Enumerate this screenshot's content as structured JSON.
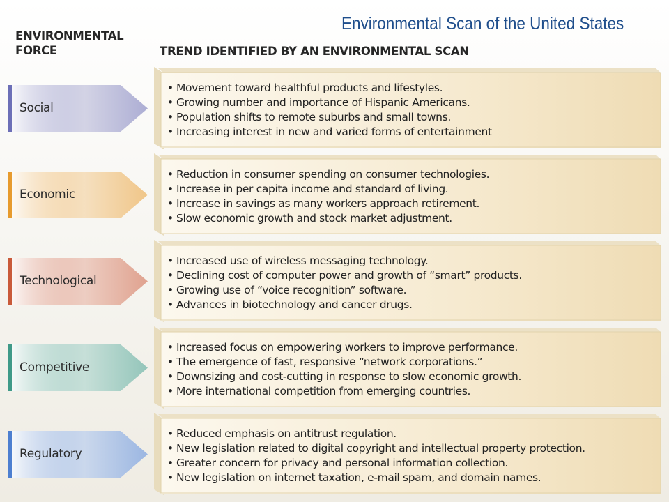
{
  "title": "Environmental Scan of the United States",
  "headers": {
    "force_line1": "ENVIRONMENTAL",
    "force_line2": "FORCE",
    "trend": "TREND IDENTIFIED BY AN ENVIRONMENTAL SCAN"
  },
  "rows": [
    {
      "label": "Social",
      "color": "#6c6fb7",
      "trends": [
        "Movement toward healthful products and lifestyles.",
        "Growing number and importance of Hispanic Americans.",
        "Population shifts to remote suburbs and small towns.",
        "Increasing interest in new and varied forms of entertainment"
      ]
    },
    {
      "label": "Economic",
      "color": "#e79b2e",
      "trends": [
        "Reduction in consumer spending on consumer technologies.",
        "Increase in per capita income and standard of living.",
        "Increase in savings as many workers approach retirement.",
        "Slow economic growth and stock market adjustment."
      ]
    },
    {
      "label": "Technological",
      "color": "#c95a3a",
      "trends": [
        "Increased use of wireless messaging technology.",
        "Declining cost of computer power and growth of “smart” products.",
        "Growing use of “voice recognition” software.",
        "Advances in biotechnology and cancer drugs."
      ]
    },
    {
      "label": "Competitive",
      "color": "#3f9a88",
      "trends": [
        "Increased focus on empowering workers to improve performance.",
        "The emergence of fast, responsive “network corporations.”",
        "Downsizing and cost-cutting in response to slow economic growth.",
        "More international competition from emerging countries."
      ]
    },
    {
      "label": "Regulatory",
      "color": "#4d7fd0",
      "trends": [
        "Reduced emphasis on antitrust regulation.",
        "New legislation related to digital copyright and intellectual property protection.",
        "Greater concern for privacy and personal information collection.",
        "New legislation on internet taxation, e-mail spam, and domain names."
      ]
    }
  ]
}
